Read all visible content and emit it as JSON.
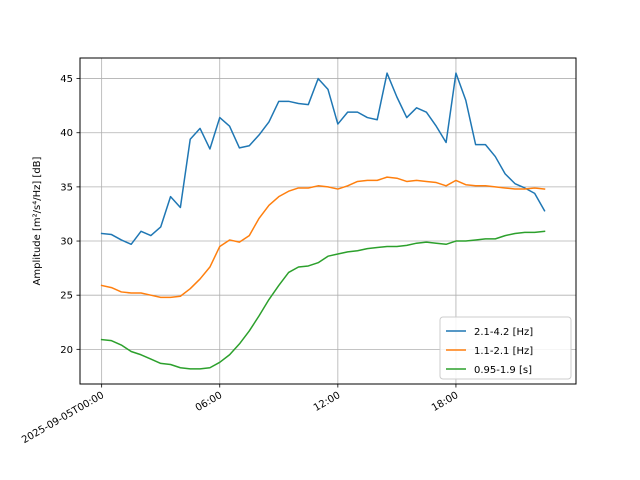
{
  "chart_data": {
    "type": "line",
    "title": "",
    "xlabel": "",
    "ylabel": "Amplitude [m²/s⁴/Hz] [dB]",
    "x_tick_labels": [
      "2025-09-05T00:00",
      "06:00",
      "12:00",
      "18:00"
    ],
    "y_tick_labels": [
      "20",
      "25",
      "30",
      "35",
      "40",
      "45"
    ],
    "y_ticks": [
      20,
      25,
      30,
      35,
      40,
      45
    ],
    "ylim": [
      16.8,
      46.9
    ],
    "xlim": [
      "2025-09-04T22:54",
      "2025-09-06T00:06"
    ],
    "grid": true,
    "legend_position": "lower right",
    "x": [
      "2025-09-05T00:00",
      "2025-09-05T00:30",
      "2025-09-05T01:00",
      "2025-09-05T01:30",
      "2025-09-05T02:00",
      "2025-09-05T02:30",
      "2025-09-05T03:00",
      "2025-09-05T03:30",
      "2025-09-05T04:00",
      "2025-09-05T04:30",
      "2025-09-05T05:00",
      "2025-09-05T05:30",
      "2025-09-05T06:00",
      "2025-09-05T06:30",
      "2025-09-05T07:00",
      "2025-09-05T07:30",
      "2025-09-05T08:00",
      "2025-09-05T08:30",
      "2025-09-05T09:00",
      "2025-09-05T09:30",
      "2025-09-05T10:00",
      "2025-09-05T10:30",
      "2025-09-05T11:00",
      "2025-09-05T11:30",
      "2025-09-05T12:00",
      "2025-09-05T12:30",
      "2025-09-05T13:00",
      "2025-09-05T13:30",
      "2025-09-05T14:00",
      "2025-09-05T14:30",
      "2025-09-05T15:00",
      "2025-09-05T15:30",
      "2025-09-05T16:00",
      "2025-09-05T16:30",
      "2025-09-05T17:00",
      "2025-09-05T17:30",
      "2025-09-05T18:00",
      "2025-09-05T18:30",
      "2025-09-05T19:00",
      "2025-09-05T19:30",
      "2025-09-05T20:00",
      "2025-09-05T20:30",
      "2025-09-05T21:00",
      "2025-09-05T21:30",
      "2025-09-05T22:00",
      "2025-09-05T22:30"
    ],
    "series": [
      {
        "name": "2.1-4.2 [Hz]",
        "color": "#1f77b4",
        "values": [
          30.7,
          30.6,
          30.1,
          29.7,
          30.9,
          30.5,
          31.3,
          34.1,
          33.1,
          39.4,
          40.4,
          38.5,
          41.4,
          40.6,
          38.6,
          38.8,
          39.8,
          41.0,
          42.9,
          42.9,
          42.7,
          42.6,
          45.0,
          44.0,
          40.8,
          41.9,
          41.9,
          41.4,
          41.2,
          45.5,
          43.3,
          41.4,
          42.3,
          41.9,
          40.6,
          39.1,
          45.5,
          43.0,
          38.9,
          38.9,
          37.8,
          36.2,
          35.3,
          34.9,
          34.4,
          32.8
        ]
      },
      {
        "name": "1.1-2.1 [Hz]",
        "color": "#ff7f0e",
        "values": [
          25.9,
          25.7,
          25.3,
          25.2,
          25.2,
          25.0,
          24.8,
          24.8,
          24.9,
          25.6,
          26.5,
          27.6,
          29.5,
          30.1,
          29.9,
          30.5,
          32.1,
          33.3,
          34.1,
          34.6,
          34.9,
          34.9,
          35.1,
          35.0,
          34.8,
          35.1,
          35.5,
          35.6,
          35.6,
          35.9,
          35.8,
          35.5,
          35.6,
          35.5,
          35.4,
          35.1,
          35.6,
          35.2,
          35.1,
          35.1,
          35.0,
          34.9,
          34.8,
          34.8,
          34.9,
          34.8
        ]
      },
      {
        "name": "0.95-1.9 [s]",
        "color": "#2ca02c",
        "values": [
          20.9,
          20.8,
          20.4,
          19.8,
          19.5,
          19.1,
          18.7,
          18.6,
          18.3,
          18.2,
          18.2,
          18.3,
          18.8,
          19.5,
          20.5,
          21.7,
          23.1,
          24.6,
          25.9,
          27.1,
          27.6,
          27.7,
          28.0,
          28.6,
          28.8,
          29.0,
          29.1,
          29.3,
          29.4,
          29.5,
          29.5,
          29.6,
          29.8,
          29.9,
          29.8,
          29.7,
          30.0,
          30.0,
          30.1,
          30.2,
          30.2,
          30.5,
          30.7,
          30.8,
          30.8,
          30.9
        ]
      }
    ]
  }
}
